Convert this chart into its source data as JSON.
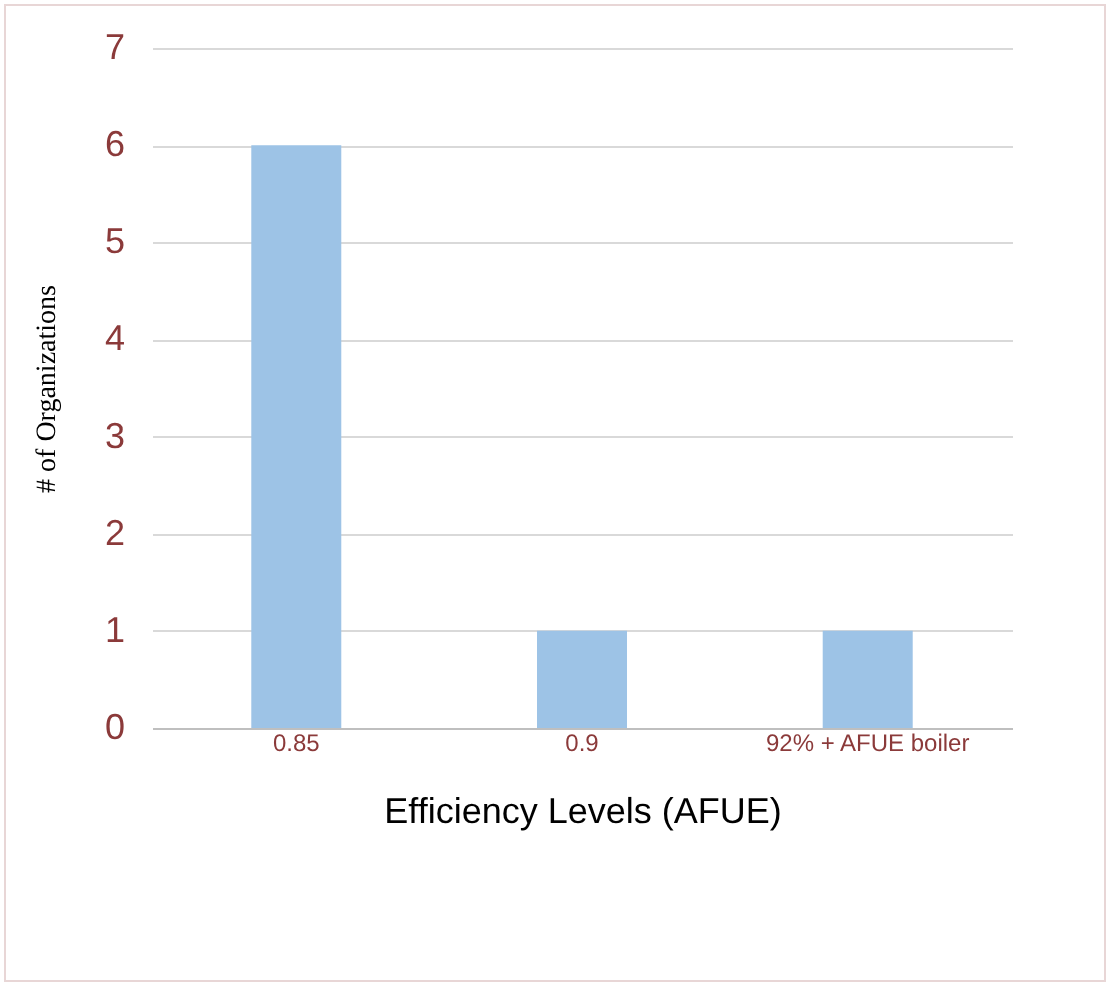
{
  "chart_data": {
    "type": "bar",
    "xlabel": "Efficiency Levels (AFUE)",
    "ylabel": "# of Organizations",
    "categories": [
      "0.85",
      "0.9",
      "92% + AFUE boiler"
    ],
    "values": [
      6,
      1,
      1
    ],
    "color": "#9dc3e6",
    "ylim": [
      0,
      7
    ],
    "yticks": [
      0,
      1,
      2,
      3,
      4,
      5,
      6,
      7
    ],
    "grid": "y"
  }
}
